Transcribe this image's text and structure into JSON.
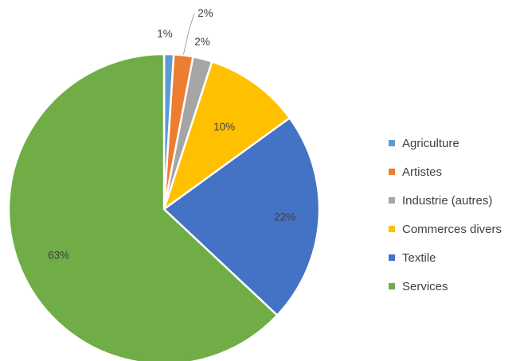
{
  "chart_data": {
    "type": "pie",
    "categories": [
      "Agriculture",
      "Artistes",
      "Industrie (autres)",
      "Commerces divers",
      "Textile",
      "Services"
    ],
    "values": [
      1,
      2,
      2,
      10,
      22,
      63
    ],
    "labels": [
      "1%",
      "2%",
      "2%",
      "10%",
      "22%",
      "63%"
    ],
    "colors": [
      "#5b9bd5",
      "#ed7d31",
      "#a5a5a5",
      "#ffc000",
      "#4472c4",
      "#70ad47"
    ],
    "legend_position": "right"
  }
}
